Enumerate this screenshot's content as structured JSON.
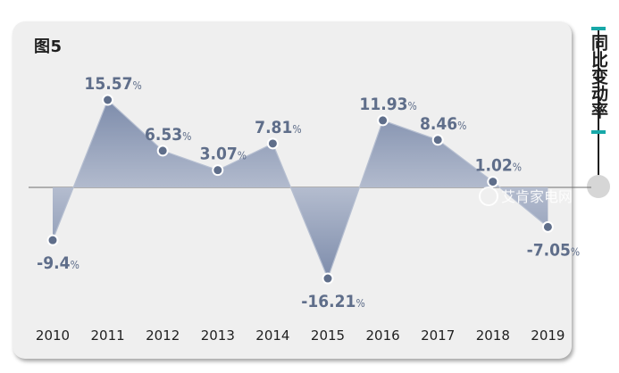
{
  "figure_label": "图5",
  "side_title": "同比变动率",
  "watermark": "艾肯家电网",
  "colors": {
    "accent": "#17a8a8",
    "marker": "#5f6e8a",
    "fill_top": "#8c9ab7",
    "fill_bottom": "#ffffff"
  },
  "chart_data": {
    "type": "area",
    "title": "",
    "xlabel": "",
    "ylabel": "",
    "unit": "%",
    "x": [
      "2010",
      "2011",
      "2012",
      "2013",
      "2014",
      "2015",
      "2016",
      "2017",
      "2018",
      "2019"
    ],
    "series": [
      {
        "values": [
          -9.4,
          15.57,
          6.53,
          3.07,
          7.81,
          -16.21,
          11.93,
          8.46,
          1.02,
          -7.05
        ],
        "labels": [
          "-9.4",
          "15.57",
          "6.53",
          "3.07",
          "7.81",
          "-16.21",
          "11.93",
          "8.46",
          "1.02",
          "-7.05"
        ]
      }
    ],
    "ylim": [
      -20,
      20
    ],
    "grid": false,
    "legend": "none"
  }
}
